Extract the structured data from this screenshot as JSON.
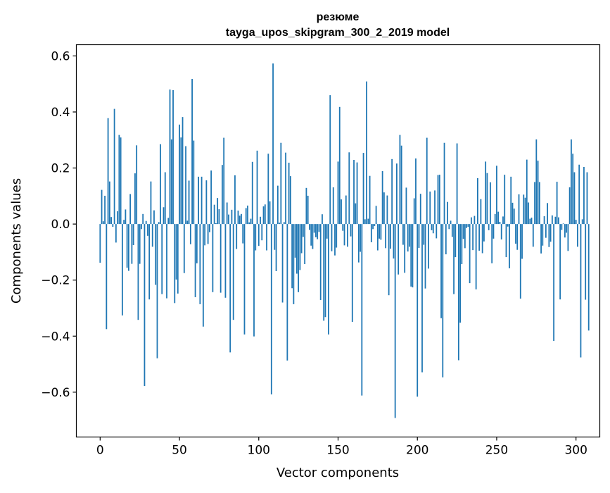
{
  "chart_data": {
    "type": "bar",
    "title": "резюме",
    "subtitle": "tayga_upos_skipgram_300_2_2019 model",
    "xlabel": "Vector components",
    "ylabel": "Components values",
    "xlim": [
      -15,
      315
    ],
    "ylim": [
      -0.76,
      0.64
    ],
    "xticks": [
      0,
      50,
      100,
      150,
      200,
      250,
      300
    ],
    "yticks": [
      -0.6,
      -0.4,
      -0.2,
      0.0,
      0.2,
      0.4,
      0.6
    ],
    "ytick_labels": [
      "−0.6",
      "−0.4",
      "−0.2",
      "0.0",
      "0.2",
      "0.4",
      "0.6"
    ],
    "grid": false,
    "bar_color": "#1f77b4",
    "values": [
      -0.138,
      0.122,
      0.01,
      0.101,
      -0.375,
      0.378,
      0.152,
      0.025,
      -0.01,
      0.411,
      -0.066,
      0.046,
      0.318,
      0.309,
      -0.326,
      0.015,
      0.052,
      -0.156,
      -0.167,
      0.107,
      -0.142,
      -0.075,
      0.181,
      0.281,
      -0.342,
      -0.142,
      -0.018,
      0.036,
      -0.578,
      0.011,
      -0.042,
      -0.269,
      0.152,
      -0.081,
      0.049,
      -0.217,
      -0.479,
      0.007,
      0.285,
      -0.25,
      0.06,
      0.185,
      -0.265,
      0.022,
      0.48,
      0.302,
      0.478,
      -0.282,
      -0.198,
      -0.248,
      0.355,
      0.309,
      0.382,
      -0.175,
      0.278,
      0.012,
      0.155,
      -0.072,
      0.518,
      0.298,
      -0.261,
      -0.14,
      0.169,
      -0.286,
      0.169,
      -0.366,
      -0.076,
      0.156,
      -0.071,
      -0.029,
      0.191,
      -0.243,
      0.069,
      0.003,
      0.093,
      0.053,
      -0.245,
      0.211,
      0.308,
      -0.263,
      0.077,
      0.034,
      -0.458,
      0.051,
      -0.342,
      0.174,
      -0.089,
      0.048,
      0.03,
      0.036,
      -0.069,
      -0.394,
      0.057,
      0.066,
      0.006,
      0.019,
      0.222,
      -0.401,
      -0.094,
      0.262,
      -0.078,
      0.026,
      -0.058,
      0.063,
      0.07,
      -0.094,
      0.251,
      0.081,
      -0.608,
      0.573,
      -0.092,
      -0.168,
      0.137,
      0.005,
      0.29,
      -0.28,
      0.007,
      0.255,
      -0.487,
      0.219,
      0.171,
      -0.229,
      -0.286,
      -0.12,
      -0.177,
      -0.243,
      -0.164,
      -0.104,
      -0.046,
      -0.143,
      0.129,
      0.101,
      -0.021,
      -0.077,
      -0.089,
      -0.031,
      -0.047,
      -0.054,
      -0.028,
      -0.271,
      0.035,
      -0.345,
      -0.332,
      -0.052,
      -0.394,
      0.46,
      -0.097,
      0.131,
      -0.112,
      -0.084,
      0.223,
      0.418,
      0.088,
      -0.024,
      -0.076,
      0.102,
      -0.081,
      0.256,
      -0.044,
      -0.349,
      0.229,
      0.074,
      0.22,
      -0.137,
      -0.099,
      -0.612,
      0.254,
      0.017,
      0.509,
      0.019,
      0.172,
      -0.065,
      -0.018,
      -0.007,
      0.065,
      -0.094,
      -0.052,
      -0.056,
      0.189,
      0.113,
      -0.086,
      0.102,
      -0.254,
      -0.088,
      0.232,
      -0.123,
      -0.692,
      0.216,
      -0.18,
      0.318,
      0.28,
      -0.074,
      -0.174,
      0.13,
      -0.098,
      -0.081,
      -0.223,
      -0.226,
      0.092,
      0.234,
      -0.616,
      -0.085,
      0.108,
      -0.529,
      -0.074,
      -0.23,
      0.308,
      -0.159,
      0.116,
      -0.022,
      -0.033,
      0.12,
      -0.051,
      0.175,
      0.176,
      -0.336,
      -0.547,
      0.29,
      -0.108,
      0.079,
      -0.018,
      0.012,
      -0.046,
      -0.25,
      -0.118,
      0.288,
      -0.486,
      -0.352,
      -0.143,
      -0.053,
      -0.086,
      -0.014,
      -0.01,
      -0.211,
      0.024,
      -0.093,
      0.029,
      -0.233,
      0.164,
      -0.095,
      0.089,
      -0.104,
      -0.062,
      0.223,
      0.182,
      -0.022,
      0.149,
      -0.14,
      -0.052,
      0.036,
      0.208,
      0.044,
      0.008,
      -0.055,
      0.027,
      0.176,
      -0.118,
      -0.009,
      -0.158,
      0.169,
      0.076,
      0.055,
      -0.07,
      -0.092,
      0.106,
      -0.266,
      -0.124,
      0.105,
      0.094,
      0.23,
      0.077,
      0.019,
      0.023,
      -0.081,
      0.15,
      0.302,
      0.226,
      0.15,
      -0.105,
      -0.077,
      0.028,
      -0.049,
      0.075,
      -0.082,
      -0.063,
      0.031,
      -0.417,
      0.026,
      0.151,
      0.024,
      -0.269,
      -0.021,
      0.002,
      -0.048,
      -0.031,
      -0.096,
      0.131,
      0.302,
      0.251,
      0.185,
      0.015,
      -0.081,
      0.212,
      -0.476,
      0.017,
      0.204,
      -0.27,
      0.185,
      -0.38
    ]
  }
}
